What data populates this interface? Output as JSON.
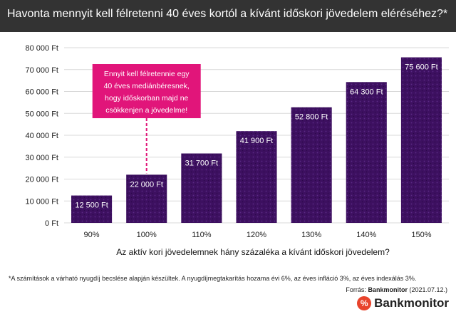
{
  "header": {
    "title": "Havonta mennyit kell félretenni 40 éves kortól a kívánt időskori jövedelem eléréséhez?*"
  },
  "chart_data": {
    "type": "bar",
    "categories": [
      "90%",
      "100%",
      "110%",
      "120%",
      "130%",
      "140%",
      "150%"
    ],
    "values": [
      12500,
      22000,
      31700,
      41900,
      52800,
      64300,
      75600
    ],
    "value_labels": [
      "12 500 Ft",
      "22 000 Ft",
      "31 700 Ft",
      "41 900 Ft",
      "52 800 Ft",
      "64 300 Ft",
      "75 600 Ft"
    ],
    "ylim": [
      0,
      80000
    ],
    "yticks": [
      0,
      10000,
      20000,
      30000,
      40000,
      50000,
      60000,
      70000,
      80000
    ],
    "ytick_labels": [
      "0 Ft",
      "10 000 Ft",
      "20 000 Ft",
      "30 000 Ft",
      "40 000 Ft",
      "50 000 Ft",
      "60 000 Ft",
      "70 000 Ft",
      "80 000 Ft"
    ],
    "xlabel": "Az aktív kori jövedelemnek hány százaléka a kívánt időskori jövedelem?",
    "ylabel": "",
    "grid": true,
    "bar_color": "#3d1060",
    "annotation": {
      "category": "100%",
      "lines": [
        "Ennyit kell félretennie egy",
        "40 éves mediánbéresnek,",
        "hogy időskorban majd ne",
        "csökkenjen a jövedelme!"
      ],
      "color": "#e1157a"
    }
  },
  "footer": {
    "footnote": "*A számítások a várható nyugdíj becslése alapján készültek. A nyugdíjmegtakarítás hozama évi 6%, az éves infláció 3%, az éves indexálás 3%.",
    "source_prefix": "Forrás: ",
    "source_name": "Bankmonitor",
    "source_date": " (2021.07.12.)",
    "brand_symbol": "%",
    "brand_name": "Bankmonitor"
  }
}
